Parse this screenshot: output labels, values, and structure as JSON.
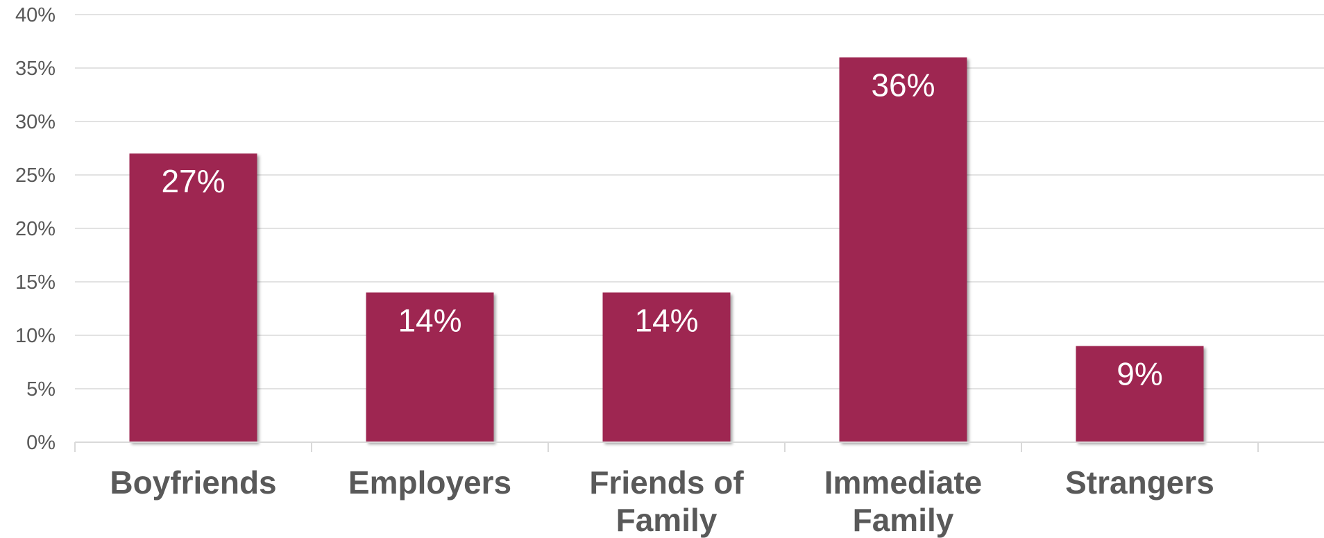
{
  "chart_data": {
    "type": "bar",
    "categories": [
      [
        "Boyfriends"
      ],
      [
        "Employers"
      ],
      [
        "Friends of",
        "Family"
      ],
      [
        "Immediate",
        "Family"
      ],
      [
        "Strangers"
      ]
    ],
    "values": [
      27,
      14,
      14,
      36,
      9
    ],
    "data_labels": [
      "27%",
      "14%",
      "14%",
      "36%",
      "9%"
    ],
    "ylim": [
      0,
      40
    ],
    "yticks": [
      0,
      5,
      10,
      15,
      20,
      25,
      30,
      35,
      40
    ],
    "ytick_labels": [
      "0%",
      "5%",
      "10%",
      "15%",
      "20%",
      "25%",
      "30%",
      "35%",
      "40%"
    ],
    "grid": true,
    "title": "",
    "xlabel": "",
    "ylabel": "",
    "bar_color": "#9e2751"
  }
}
